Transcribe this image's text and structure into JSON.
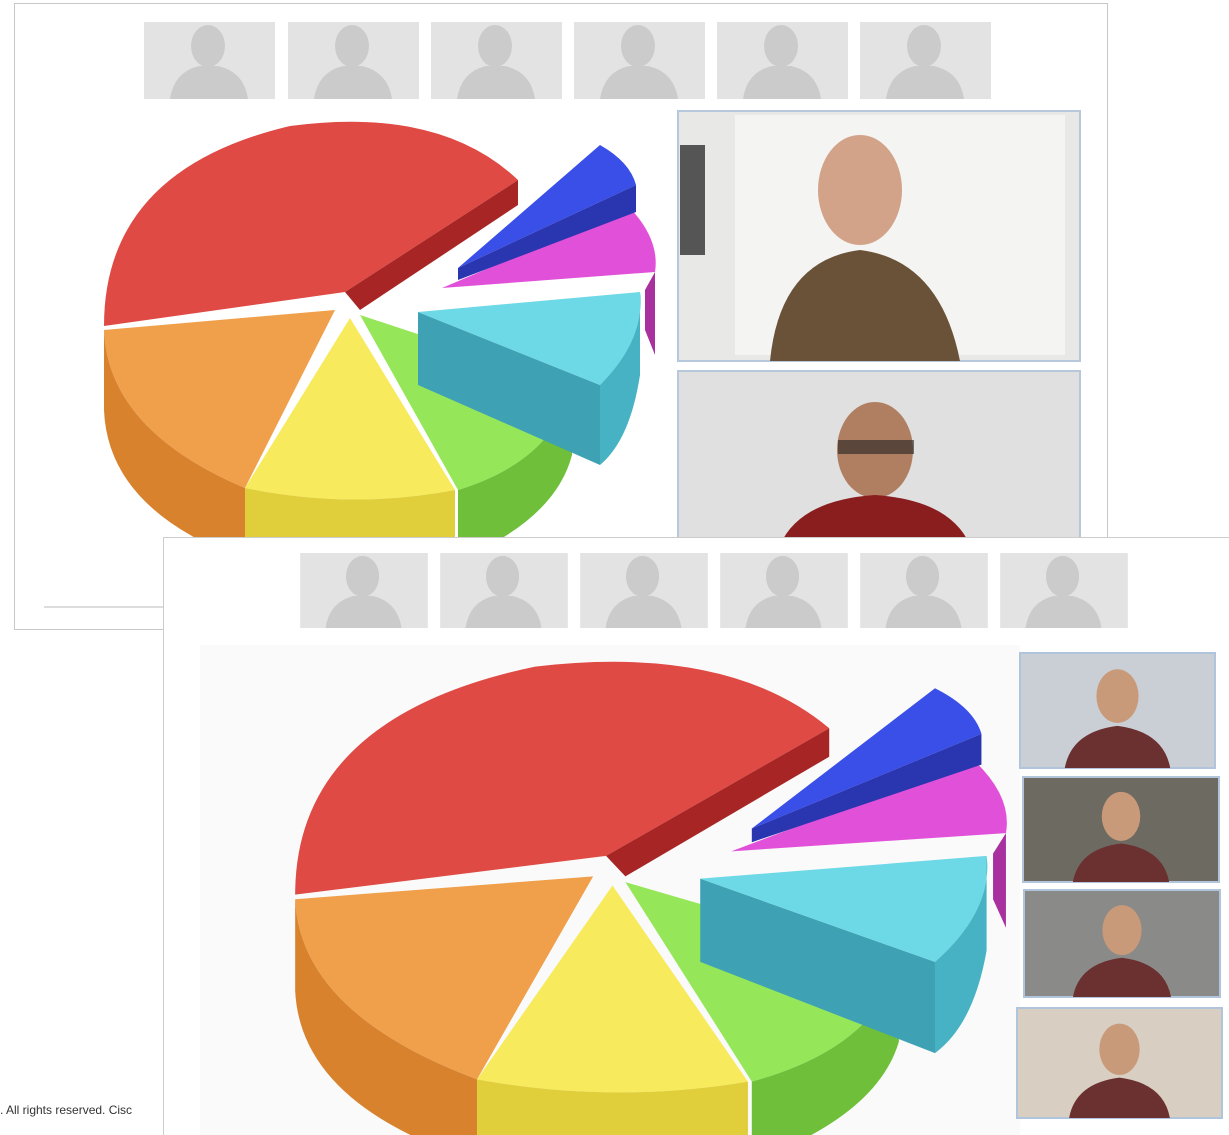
{
  "footer": {
    "text": ". All rights reserved. Cisc"
  }
}
